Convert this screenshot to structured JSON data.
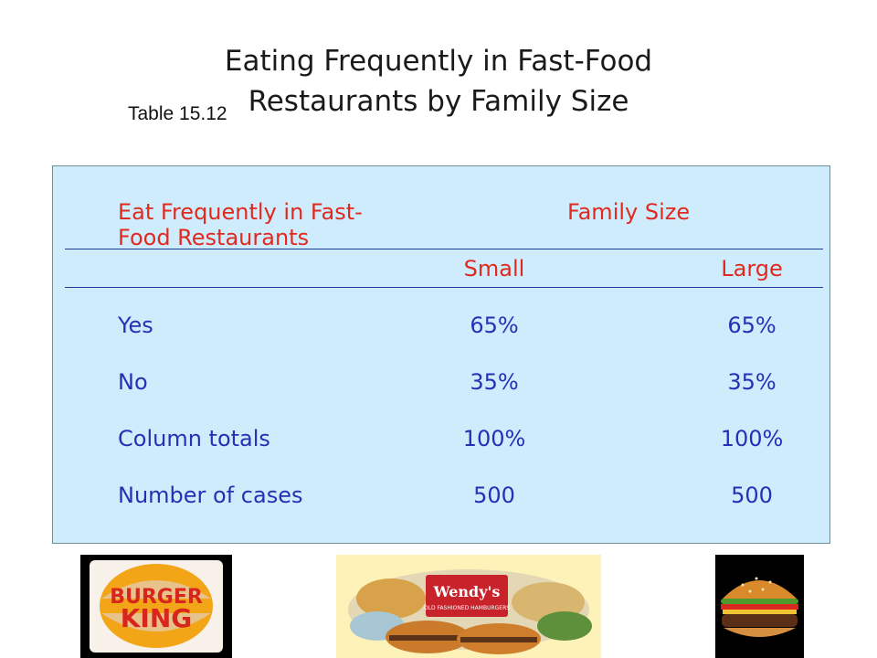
{
  "title": {
    "line1": "Eating Frequently in Fast-Food",
    "line2": "Restaurants by Family Size"
  },
  "table_label": "Table 15.12",
  "table": {
    "row_header_line1": "Eat Frequently in Fast-",
    "row_header_line2": "Food Restaurants",
    "group_header": "Family Size",
    "columns": [
      "Small",
      "Large"
    ],
    "rows": [
      {
        "label": "Yes",
        "values": [
          "65%",
          "65%"
        ]
      },
      {
        "label": "No",
        "values": [
          "35%",
          "35%"
        ]
      },
      {
        "label": "Column totals",
        "values": [
          "100%",
          "100%"
        ]
      },
      {
        "label": "Number of cases",
        "values": [
          "500",
          "500"
        ]
      }
    ]
  },
  "images": {
    "burger_king_logo_text_1": "BURGER",
    "burger_king_logo_text_2": "KING",
    "wendys_logo_text": "Wendy's",
    "wendys_sub_text": "OLD FASHIONED HAMBURGERS"
  },
  "colors": {
    "panel_background": "#cfecfd",
    "header_text": "#e0291f",
    "body_text": "#2431b5",
    "rule": "#1f3d9e"
  }
}
